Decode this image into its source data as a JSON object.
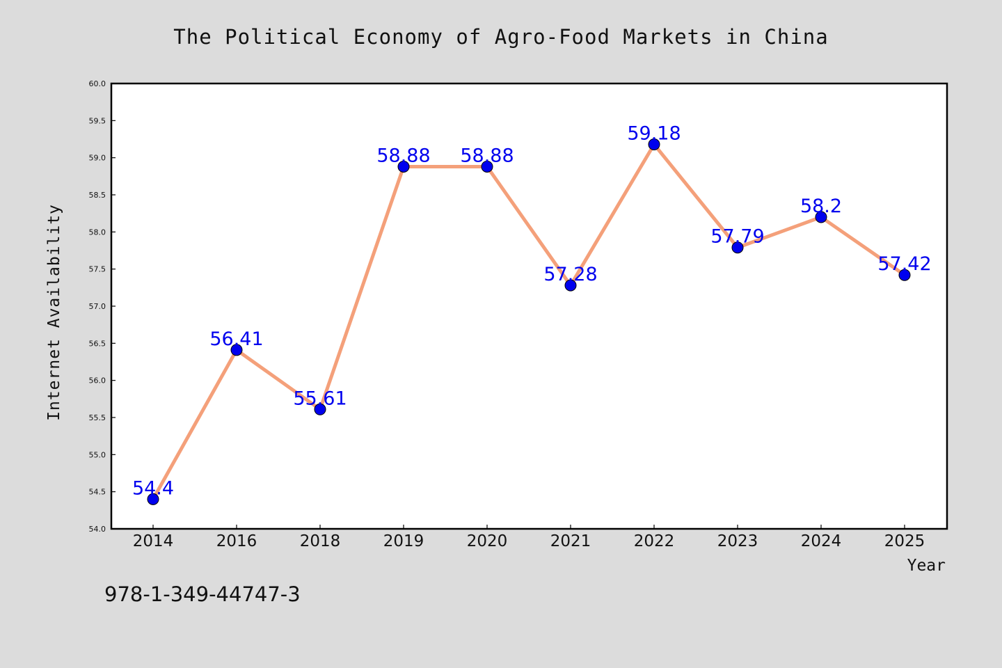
{
  "chart_data": {
    "type": "line",
    "title": "The Political Economy of Agro-Food Markets in China",
    "xlabel": "Year",
    "ylabel": "Internet Availability",
    "categories": [
      "2014",
      "2016",
      "2018",
      "2019",
      "2020",
      "2021",
      "2022",
      "2023",
      "2024",
      "2025"
    ],
    "values": [
      54.4,
      56.41,
      55.61,
      58.88,
      58.88,
      57.28,
      59.18,
      57.79,
      58.2,
      57.42
    ],
    "data_labels": [
      "54.4",
      "56.41",
      "55.61",
      "58.88",
      "58.88",
      "57.28",
      "59.18",
      "57.79",
      "58.2",
      "57.42"
    ],
    "ylim": [
      54.0,
      60.0
    ],
    "yticks": [
      "54.0",
      "54.5",
      "55.0",
      "55.5",
      "56.0",
      "56.5",
      "57.0",
      "57.5",
      "58.0",
      "58.5",
      "59.0",
      "59.5",
      "60.0"
    ],
    "grid": false,
    "legend": "none",
    "footnote": "978-1-349-44747-3",
    "colors": {
      "line": "#f4a07a",
      "marker": "#0000ee",
      "label": "#0000ee",
      "background": "#dcdcdc",
      "plot_background": "#ffffff"
    }
  }
}
